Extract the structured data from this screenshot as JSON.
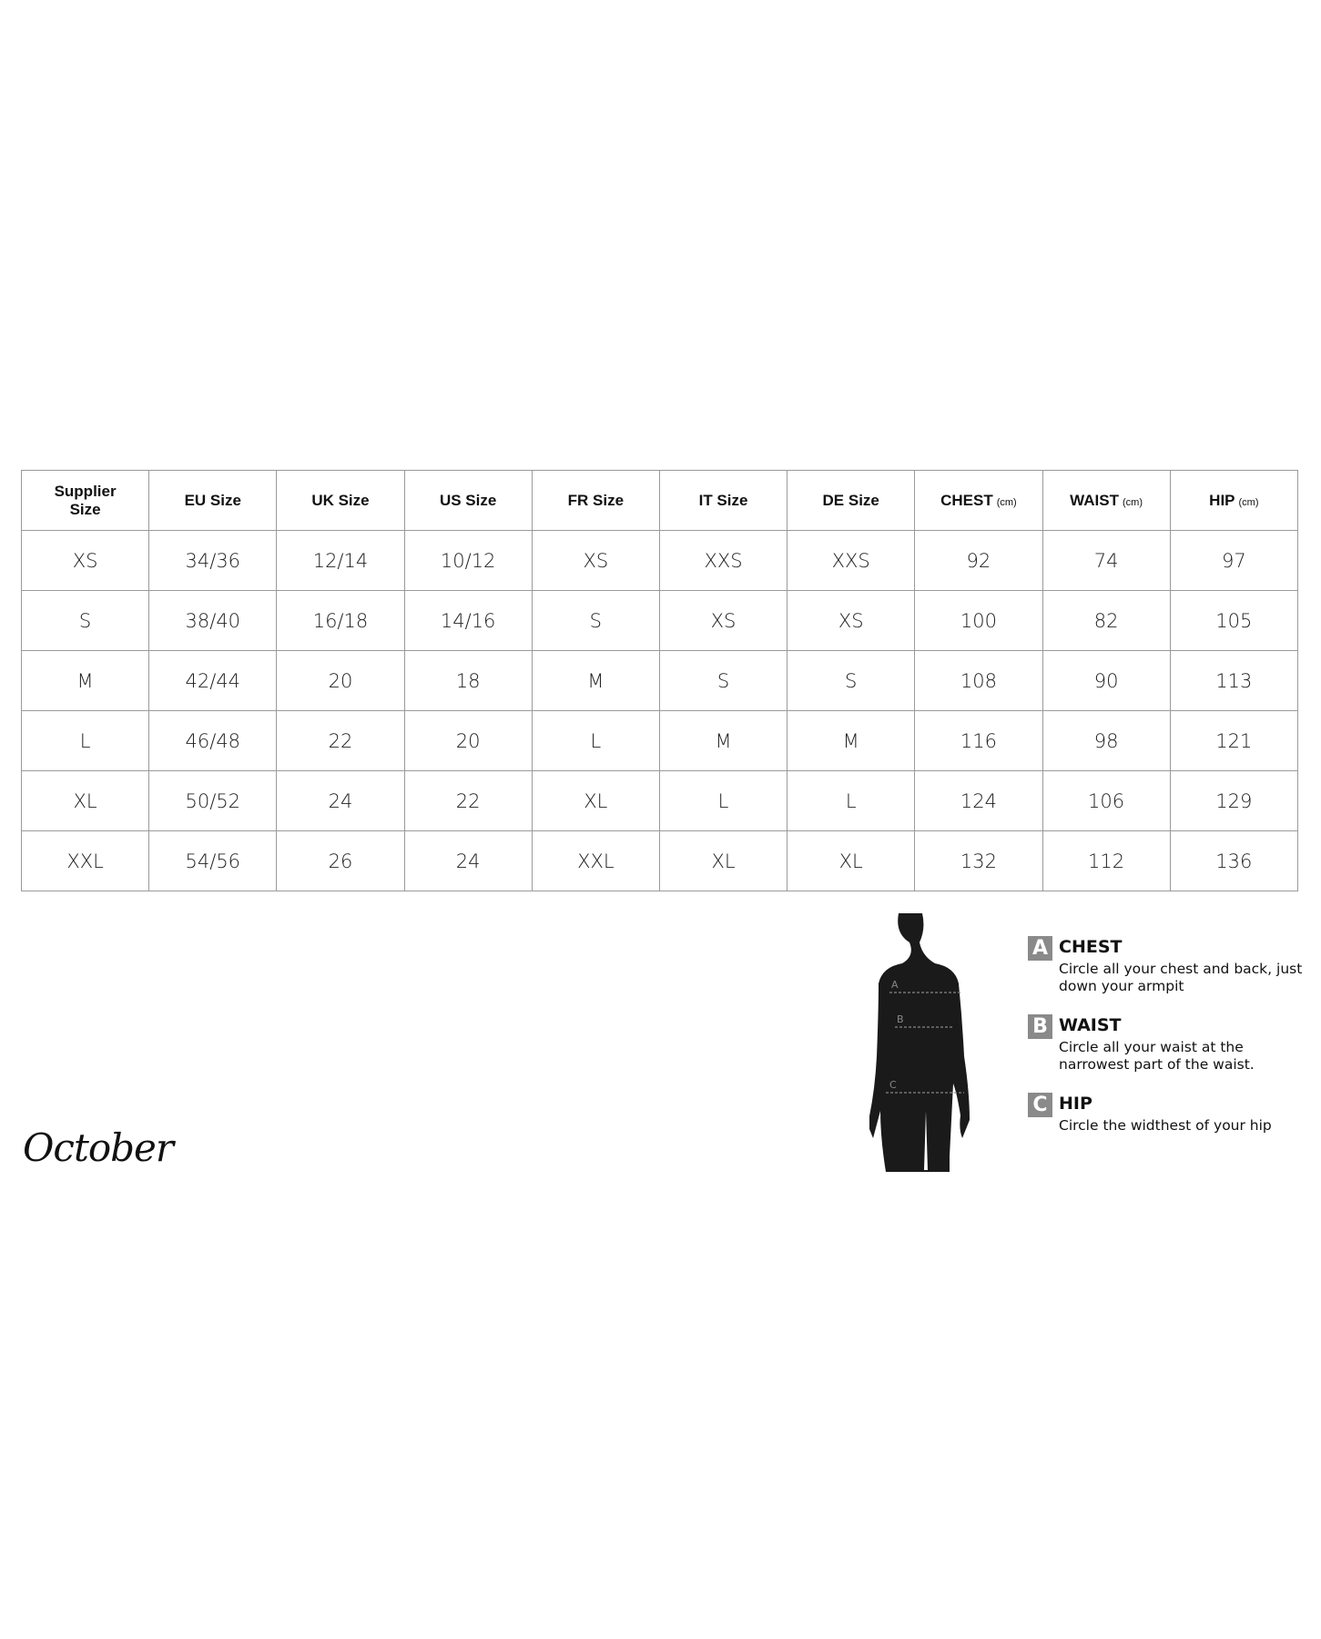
{
  "table": {
    "headers": [
      {
        "label": "Supplier Size"
      },
      {
        "label": "EU Size"
      },
      {
        "label": "UK Size"
      },
      {
        "label": "US Size"
      },
      {
        "label": "FR Size"
      },
      {
        "label": "IT Size"
      },
      {
        "label": "DE Size"
      },
      {
        "label": "CHEST",
        "unit": "(cm)"
      },
      {
        "label": "WAIST",
        "unit": "(cm)"
      },
      {
        "label": "HIP",
        "unit": "(cm)"
      }
    ],
    "rows": [
      [
        "XS",
        "34/36",
        "12/14",
        "10/12",
        "XS",
        "XXS",
        "XXS",
        "92",
        "74",
        "97"
      ],
      [
        "S",
        "38/40",
        "16/18",
        "14/16",
        "S",
        "XS",
        "XS",
        "100",
        "82",
        "105"
      ],
      [
        "M",
        "42/44",
        "20",
        "18",
        "M",
        "S",
        "S",
        "108",
        "90",
        "113"
      ],
      [
        "L",
        "46/48",
        "22",
        "20",
        "L",
        "M",
        "M",
        "116",
        "98",
        "121"
      ],
      [
        "XL",
        "50/52",
        "24",
        "22",
        "XL",
        "L",
        "L",
        "124",
        "106",
        "129"
      ],
      [
        "XXL",
        "54/56",
        "26",
        "24",
        "XXL",
        "XL",
        "XL",
        "132",
        "112",
        "136"
      ]
    ]
  },
  "figure": {
    "markers": [
      "A",
      "B",
      "C"
    ]
  },
  "legend": [
    {
      "letter": "A",
      "title": "CHEST",
      "desc": "Circle all your chest and back, just down your armpit"
    },
    {
      "letter": "B",
      "title": "WAIST",
      "desc": "Circle all your waist at the narrowest part of the waist."
    },
    {
      "letter": "C",
      "title": "HIP",
      "desc": "Circle the widthest of your hip"
    }
  ],
  "brand": "October",
  "colors": {
    "border": "#9a9a9a",
    "legend_box": "#8a8a8a",
    "silhouette": "#1a1a1a"
  }
}
